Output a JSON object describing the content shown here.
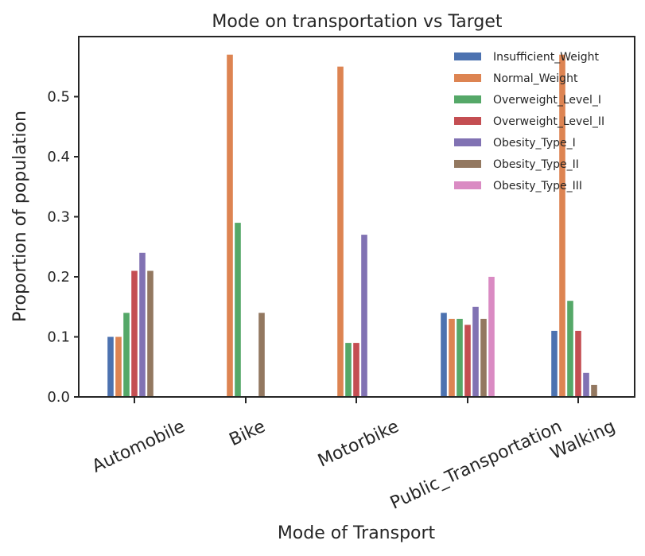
{
  "chart_data": {
    "type": "bar",
    "title": "Mode on transportation vs Target",
    "xlabel": "Mode of Transport",
    "ylabel": "Proportion of population",
    "categories": [
      "Automobile",
      "Bike",
      "Motorbike",
      "Public_Transportation",
      "Walking"
    ],
    "ylim": [
      0,
      0.6
    ],
    "yticks": [
      "0.0",
      "0.1",
      "0.2",
      "0.3",
      "0.4",
      "0.5"
    ],
    "grid": false,
    "legend_position": "top-right",
    "series": [
      {
        "name": "Insufficient_Weight",
        "color": "#4c72b0",
        "values": [
          0.1,
          0,
          0,
          0.14,
          0.11
        ]
      },
      {
        "name": "Normal_Weight",
        "color": "#dd8452",
        "values": [
          0.1,
          0.57,
          0.55,
          0.13,
          0.57
        ]
      },
      {
        "name": "Overweight_Level_I",
        "color": "#55a868",
        "values": [
          0.14,
          0.29,
          0.09,
          0.13,
          0.16
        ]
      },
      {
        "name": "Overweight_Level_II",
        "color": "#c44e52",
        "values": [
          0.21,
          0,
          0.09,
          0.12,
          0.11
        ]
      },
      {
        "name": "Obesity_Type_I",
        "color": "#8172b3",
        "values": [
          0.24,
          0,
          0.27,
          0.15,
          0.04
        ]
      },
      {
        "name": "Obesity_Type_II",
        "color": "#937860",
        "values": [
          0.21,
          0.14,
          0,
          0.13,
          0.02
        ]
      },
      {
        "name": "Obesity_Type_III",
        "color": "#da8bc3",
        "values": [
          0,
          0,
          0,
          0.2,
          0
        ]
      }
    ]
  }
}
